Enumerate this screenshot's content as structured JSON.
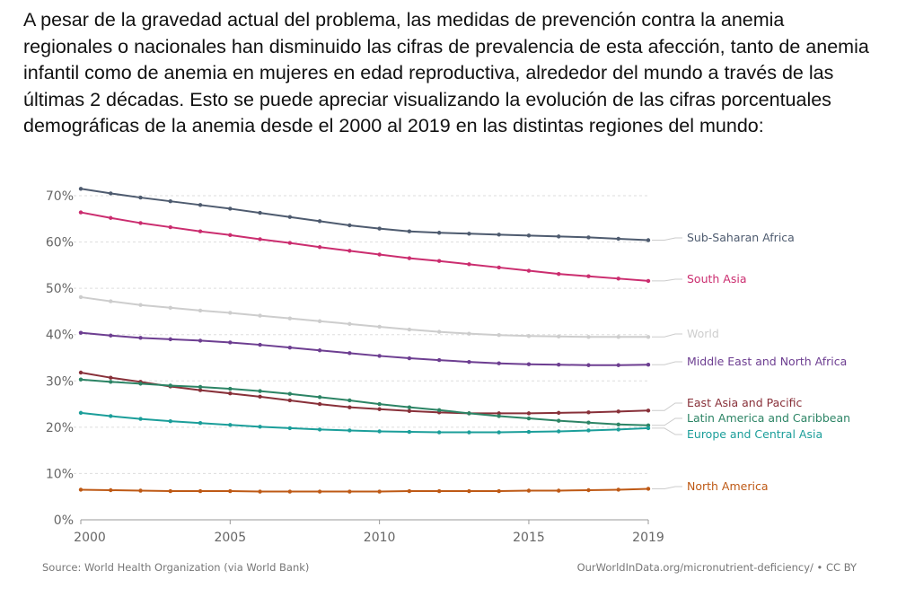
{
  "intro_text": "A pesar de la gravedad actual del problema, las medidas de prevención contra la anemia regionales o nacionales han disminuido las cifras de prevalencia de esta afección, tanto de anemia infantil como de anemia en mujeres en edad reproductiva, alrededor del mundo a través de las últimas 2 décadas. Esto se puede apreciar visualizando la evolución de las cifras porcentuales demográficas de la anemia desde el 2000 al 2019 en las distintas regiones del mundo:",
  "footer": {
    "source": "Source: World Health Organization (via World Bank)",
    "credit": "OurWorldInData.org/micronutrient-deficiency/ • CC BY"
  },
  "chart_data": {
    "type": "line",
    "x": [
      2000,
      2001,
      2002,
      2003,
      2004,
      2005,
      2006,
      2007,
      2008,
      2009,
      2010,
      2011,
      2012,
      2013,
      2014,
      2015,
      2016,
      2017,
      2018,
      2019
    ],
    "xlim": [
      2000,
      2019
    ],
    "ylim": [
      0,
      70
    ],
    "x_ticks": [
      "2000",
      "2005",
      "2010",
      "2015",
      "2019"
    ],
    "y_ticks": [
      "0%",
      "10%",
      "20%",
      "30%",
      "40%",
      "50%",
      "60%",
      "70%"
    ],
    "grid": "horizontal dashed",
    "legend": "right (direct line labels)",
    "series": [
      {
        "name": "Sub-Saharan Africa",
        "color": "#4e5b6f",
        "values": [
          71.5,
          70.5,
          69.6,
          68.8,
          68.0,
          67.2,
          66.3,
          65.4,
          64.5,
          63.6,
          62.9,
          62.3,
          62.0,
          61.8,
          61.6,
          61.4,
          61.2,
          61.0,
          60.7,
          60.4
        ]
      },
      {
        "name": "South Asia",
        "color": "#cb2d6f",
        "values": [
          66.4,
          65.2,
          64.1,
          63.2,
          62.3,
          61.5,
          60.6,
          59.8,
          58.9,
          58.1,
          57.3,
          56.5,
          55.9,
          55.2,
          54.5,
          53.8,
          53.1,
          52.6,
          52.1,
          51.6
        ]
      },
      {
        "name": "World",
        "color": "#cdcdcd",
        "values": [
          48.1,
          47.2,
          46.4,
          45.8,
          45.2,
          44.7,
          44.1,
          43.5,
          42.9,
          42.3,
          41.7,
          41.1,
          40.6,
          40.2,
          39.9,
          39.7,
          39.6,
          39.5,
          39.5,
          39.5
        ]
      },
      {
        "name": "Middle East and North Africa",
        "color": "#6d3e91",
        "values": [
          40.4,
          39.8,
          39.3,
          39.0,
          38.7,
          38.3,
          37.8,
          37.2,
          36.6,
          36.0,
          35.4,
          34.9,
          34.5,
          34.1,
          33.8,
          33.6,
          33.5,
          33.4,
          33.4,
          33.5
        ]
      },
      {
        "name": "East Asia and Pacific",
        "color": "#883039",
        "values": [
          31.8,
          30.7,
          29.8,
          28.8,
          28.0,
          27.3,
          26.6,
          25.8,
          25.0,
          24.3,
          23.9,
          23.5,
          23.2,
          23.0,
          23.0,
          23.0,
          23.1,
          23.2,
          23.4,
          23.6
        ]
      },
      {
        "name": "Latin America and Caribbean",
        "color": "#2c8465",
        "values": [
          30.3,
          29.8,
          29.4,
          29.0,
          28.7,
          28.3,
          27.8,
          27.2,
          26.5,
          25.8,
          25.0,
          24.3,
          23.7,
          23.0,
          22.4,
          21.9,
          21.4,
          21.0,
          20.6,
          20.4
        ]
      },
      {
        "name": "Europe and Central Asia",
        "color": "#1b9e9a",
        "values": [
          23.1,
          22.4,
          21.8,
          21.3,
          20.9,
          20.5,
          20.1,
          19.8,
          19.5,
          19.3,
          19.1,
          19.0,
          18.9,
          18.9,
          18.9,
          19.0,
          19.1,
          19.3,
          19.5,
          19.8
        ]
      },
      {
        "name": "North America",
        "color": "#be5915",
        "values": [
          6.5,
          6.4,
          6.3,
          6.2,
          6.2,
          6.2,
          6.1,
          6.1,
          6.1,
          6.1,
          6.1,
          6.2,
          6.2,
          6.2,
          6.2,
          6.3,
          6.3,
          6.4,
          6.5,
          6.7
        ]
      }
    ]
  }
}
